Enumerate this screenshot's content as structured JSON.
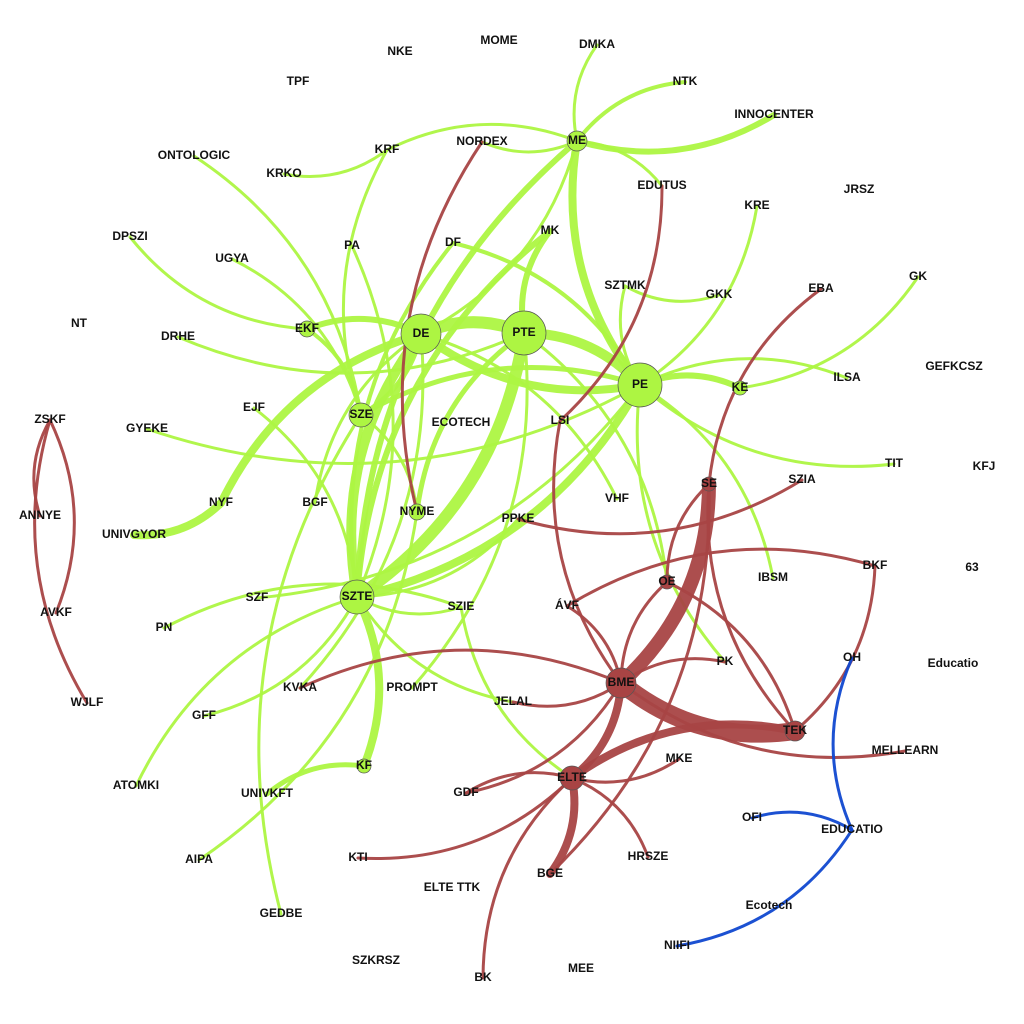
{
  "nodes": [
    {
      "label": "NKE"
    },
    {
      "label": "MOME"
    },
    {
      "label": "DMKA"
    },
    {
      "label": "TPF"
    },
    {
      "label": "NTK"
    },
    {
      "label": "INNOCENTER"
    },
    {
      "label": "ONTOLOGIC"
    },
    {
      "label": "NORDEX"
    },
    {
      "label": "ME"
    },
    {
      "label": "KRF"
    },
    {
      "label": "KRKO"
    },
    {
      "label": "EDUTUS"
    },
    {
      "label": "JRSZ"
    },
    {
      "label": "KRE"
    },
    {
      "label": "DPSZI"
    },
    {
      "label": "DF"
    },
    {
      "label": "MK"
    },
    {
      "label": "PA"
    },
    {
      "label": "UGYA"
    },
    {
      "label": "SZTMK"
    },
    {
      "label": "GKK"
    },
    {
      "label": "EBA"
    },
    {
      "label": "GK"
    },
    {
      "label": "NT"
    },
    {
      "label": "EKF"
    },
    {
      "label": "DE"
    },
    {
      "label": "PTE"
    },
    {
      "label": "DRHE"
    },
    {
      "label": "PE"
    },
    {
      "label": "KE"
    },
    {
      "label": "ILSA"
    },
    {
      "label": "GEFKCSZ"
    },
    {
      "label": "ZSKF"
    },
    {
      "label": "EJF"
    },
    {
      "label": "SZE"
    },
    {
      "label": "ECOTECH"
    },
    {
      "label": "LSI"
    },
    {
      "label": "GYEKE"
    },
    {
      "label": "TIT"
    },
    {
      "label": "KFJ"
    },
    {
      "label": "SE"
    },
    {
      "label": "SZIA"
    },
    {
      "label": "ANNYE"
    },
    {
      "label": "NYF"
    },
    {
      "label": "BGF"
    },
    {
      "label": "NYME"
    },
    {
      "label": "PPKE"
    },
    {
      "label": "VHF"
    },
    {
      "label": "UNIVGYOR"
    },
    {
      "label": "OE"
    },
    {
      "label": "IBSM"
    },
    {
      "label": "BKF"
    },
    {
      "label": "63"
    },
    {
      "label": "AVKF"
    },
    {
      "label": "SZF"
    },
    {
      "label": "SZTE"
    },
    {
      "label": "SZIE"
    },
    {
      "label": "ÁVF"
    },
    {
      "label": "PN"
    },
    {
      "label": "OH"
    },
    {
      "label": "Educatio"
    },
    {
      "label": "PK"
    },
    {
      "label": "BME"
    },
    {
      "label": "KVKA"
    },
    {
      "label": "PROMPT"
    },
    {
      "label": "WJLF"
    },
    {
      "label": "JELAL"
    },
    {
      "label": "GFF"
    },
    {
      "label": "TEK"
    },
    {
      "label": "MELLEARN"
    },
    {
      "label": "KF"
    },
    {
      "label": "MKE"
    },
    {
      "label": "ELTE"
    },
    {
      "label": "ATOMKI"
    },
    {
      "label": "UNIVKFT"
    },
    {
      "label": "GDF"
    },
    {
      "label": "OFI"
    },
    {
      "label": "EDUCATIO"
    },
    {
      "label": "AIPA"
    },
    {
      "label": "KTI"
    },
    {
      "label": "HRSZE"
    },
    {
      "label": "BGE"
    },
    {
      "label": "ELTE TTK"
    },
    {
      "label": "Ecotech"
    },
    {
      "label": "GEDBE"
    },
    {
      "label": "NIIFI"
    },
    {
      "label": "SZKRSZ"
    },
    {
      "label": "MEE"
    },
    {
      "label": "BK"
    }
  ]
}
